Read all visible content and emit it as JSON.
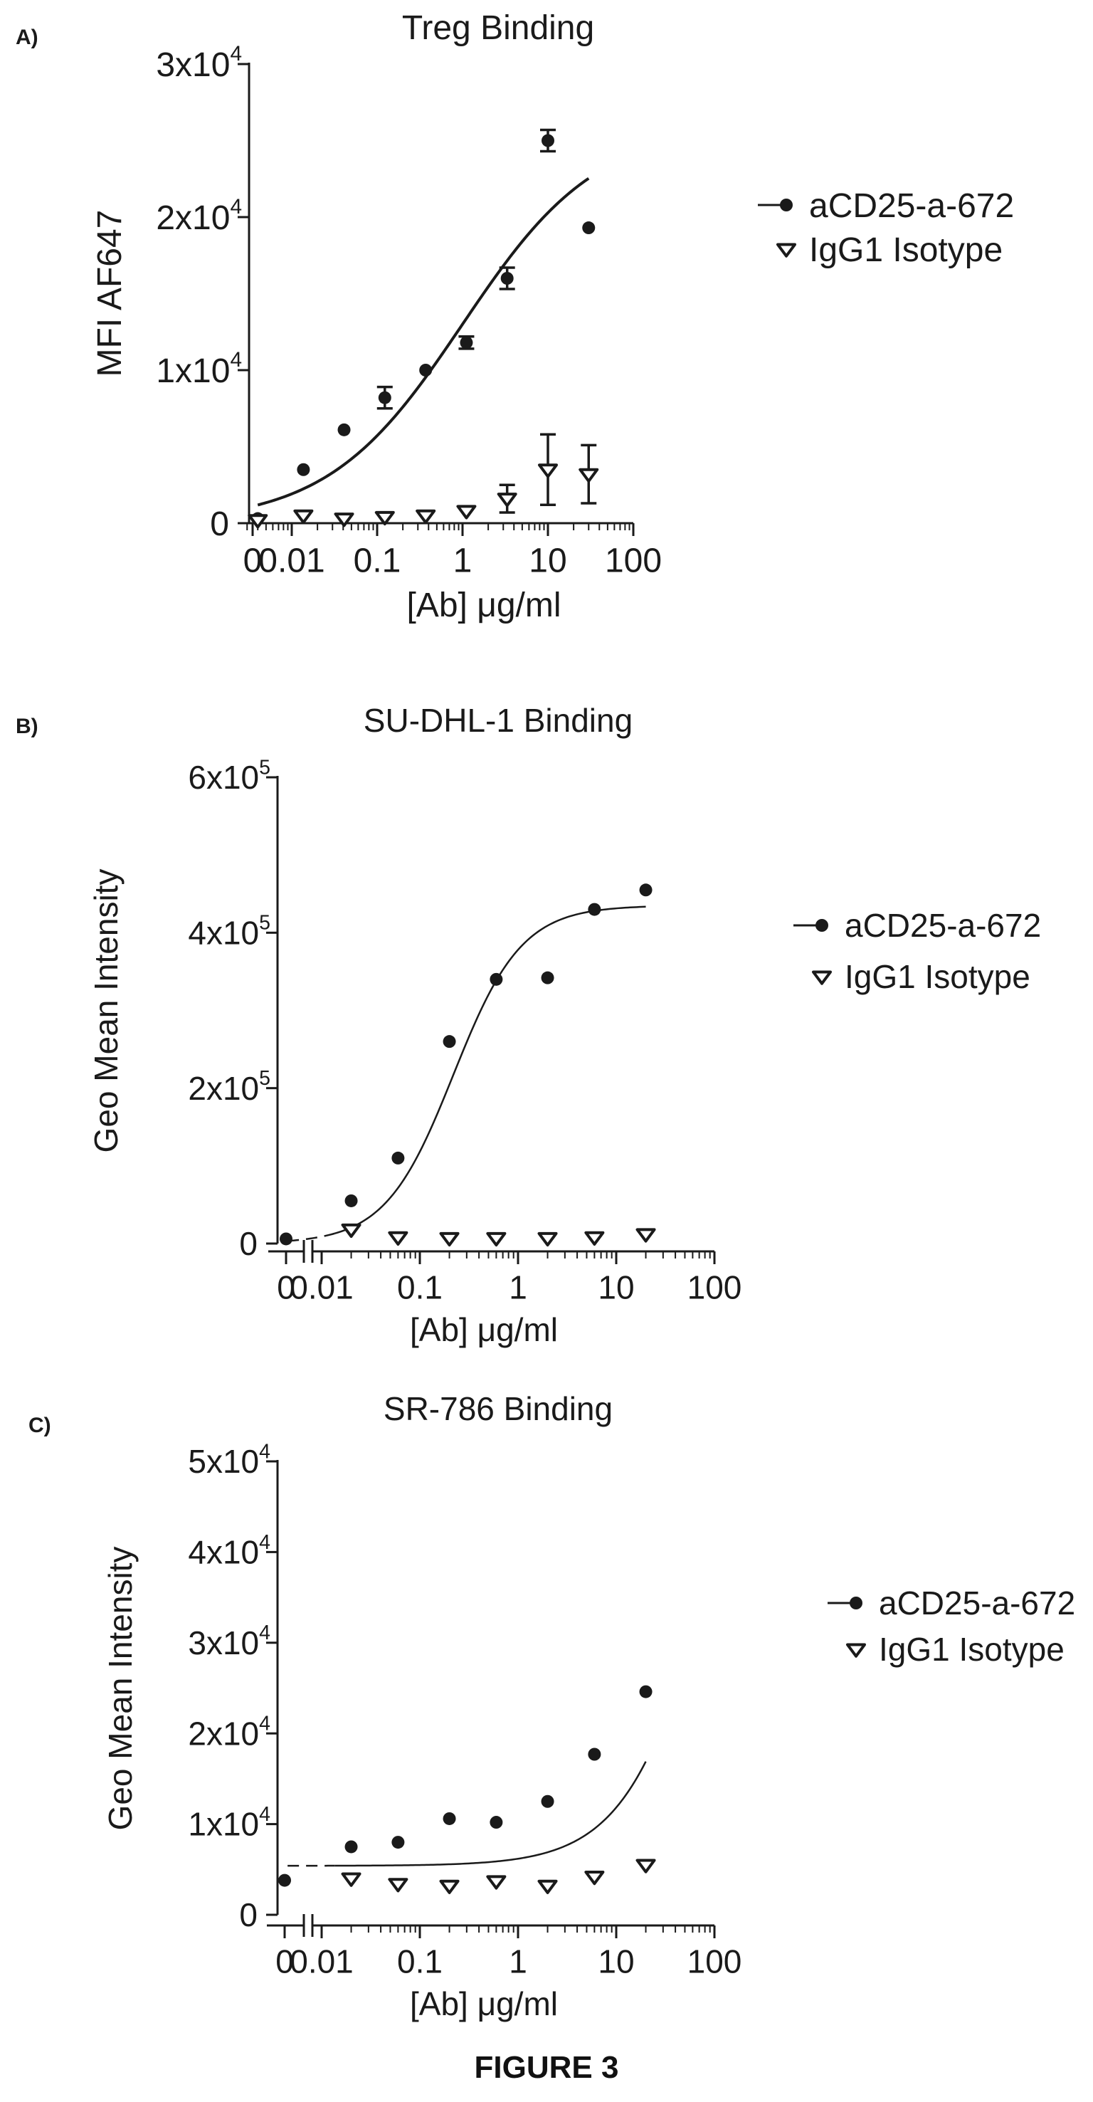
{
  "figure_label": "FIGURE 3",
  "colors": {
    "ink": "#1a1a1a"
  },
  "chart_data": [
    {
      "type": "scatter",
      "panel_label": "A)",
      "title": "Treg Binding",
      "xlabel": "[Ab] μg/ml",
      "ylabel": "MFI AF647",
      "xscale": "log",
      "x_tick_labels": [
        "0",
        "0.01",
        "0.1",
        "1",
        "10",
        "100"
      ],
      "y_ticks": [
        {
          "value": 0,
          "label": "0"
        },
        {
          "value": 10000,
          "label": "1x10",
          "exp": "4"
        },
        {
          "value": 20000,
          "label": "2x10",
          "exp": "4"
        },
        {
          "value": 30000,
          "label": "3x10",
          "exp": "4"
        }
      ],
      "ylim": [
        0,
        30000
      ],
      "xlim": [
        0.003,
        100
      ],
      "axis_break": false,
      "legend_position": "right",
      "series": [
        {
          "name": "aCD25-a-672",
          "marker": "circle",
          "points": [
            {
              "x": 0.004,
              "y": 300,
              "err": 0
            },
            {
              "x": 0.0137,
              "y": 3500,
              "err": 0
            },
            {
              "x": 0.041,
              "y": 6100,
              "err": 0
            },
            {
              "x": 0.123,
              "y": 8200,
              "err": 700
            },
            {
              "x": 0.37,
              "y": 10000,
              "err": 0
            },
            {
              "x": 1.11,
              "y": 11800,
              "err": 400
            },
            {
              "x": 3.33,
              "y": 16000,
              "err": 700
            },
            {
              "x": 10,
              "y": 25000,
              "err": 700
            },
            {
              "x": 30,
              "y": 19300,
              "err": 0
            }
          ],
          "fit": {
            "bottom": 0,
            "top": 26000,
            "ec50": 1.0,
            "hill": 0.55,
            "x_from": 0.004,
            "x_to": 30
          }
        },
        {
          "name": "IgG1 Isotype",
          "marker": "triangle-down",
          "points": [
            {
              "x": 0.004,
              "y": 200,
              "err": 0
            },
            {
              "x": 0.0137,
              "y": 500,
              "err": 0
            },
            {
              "x": 0.041,
              "y": 300,
              "err": 0
            },
            {
              "x": 0.123,
              "y": 400,
              "err": 0
            },
            {
              "x": 0.37,
              "y": 500,
              "err": 0
            },
            {
              "x": 1.11,
              "y": 800,
              "err": 0
            },
            {
              "x": 3.33,
              "y": 1600,
              "err": 900
            },
            {
              "x": 10,
              "y": 3500,
              "err": 2300
            },
            {
              "x": 30,
              "y": 3200,
              "err": 1900
            }
          ]
        }
      ]
    },
    {
      "type": "scatter",
      "panel_label": "B)",
      "title": "SU-DHL-1 Binding",
      "xlabel": "[Ab] μg/ml",
      "ylabel": "Geo Mean Intensity",
      "xscale": "log",
      "x_tick_labels": [
        "0",
        "0.01",
        "0.1",
        "1",
        "10",
        "100"
      ],
      "y_ticks": [
        {
          "value": 0,
          "label": "0"
        },
        {
          "value": 200000,
          "label": "2x10",
          "exp": "5"
        },
        {
          "value": 400000,
          "label": "4x10",
          "exp": "5"
        },
        {
          "value": 600000,
          "label": "6x10",
          "exp": "5"
        }
      ],
      "ylim": [
        0,
        600000
      ],
      "xlim": [
        0.01,
        100
      ],
      "axis_break": true,
      "legend_position": "right",
      "series": [
        {
          "name": "aCD25-a-672",
          "marker": "circle",
          "points": [
            {
              "x": 0,
              "y": 6000
            },
            {
              "x": 0.02,
              "y": 55000
            },
            {
              "x": 0.06,
              "y": 110000
            },
            {
              "x": 0.2,
              "y": 260000
            },
            {
              "x": 0.6,
              "y": 340000
            },
            {
              "x": 2,
              "y": 342000
            },
            {
              "x": 6,
              "y": 430000
            },
            {
              "x": 20,
              "y": 455000
            }
          ],
          "fit": {
            "bottom": 0,
            "top": 435000,
            "ec50": 0.22,
            "hill": 1.25,
            "x_from": 0.0045,
            "x_to": 20,
            "dashed_below": 0.013
          }
        },
        {
          "name": "IgG1 Isotype",
          "marker": "triangle-down",
          "points": [
            {
              "x": 0.02,
              "y": 18000
            },
            {
              "x": 0.06,
              "y": 8000
            },
            {
              "x": 0.2,
              "y": 7000
            },
            {
              "x": 0.6,
              "y": 7000
            },
            {
              "x": 2,
              "y": 7000
            },
            {
              "x": 6,
              "y": 8000
            },
            {
              "x": 20,
              "y": 12000
            }
          ]
        }
      ]
    },
    {
      "type": "scatter",
      "panel_label": "C)",
      "title": "SR-786 Binding",
      "xlabel": "[Ab] μg/ml",
      "ylabel": "Geo Mean Intensity",
      "xscale": "log",
      "x_tick_labels": [
        "0",
        "0.01",
        "0.1",
        "1",
        "10",
        "100"
      ],
      "y_ticks": [
        {
          "value": 0,
          "label": "0"
        },
        {
          "value": 10000,
          "label": "1x10",
          "exp": "4"
        },
        {
          "value": 20000,
          "label": "2x10",
          "exp": "4"
        },
        {
          "value": 30000,
          "label": "3x10",
          "exp": "4"
        },
        {
          "value": 40000,
          "label": "4x10",
          "exp": "4"
        },
        {
          "value": 50000,
          "label": "5x10",
          "exp": "4"
        }
      ],
      "ylim": [
        0,
        50000
      ],
      "xlim": [
        0.01,
        100
      ],
      "axis_break": true,
      "legend_position": "right",
      "series": [
        {
          "name": "aCD25-a-672",
          "marker": "circle",
          "points": [
            {
              "x": 0,
              "y": 3800
            },
            {
              "x": 0.02,
              "y": 7500
            },
            {
              "x": 0.06,
              "y": 8000
            },
            {
              "x": 0.2,
              "y": 10600
            },
            {
              "x": 0.6,
              "y": 10200
            },
            {
              "x": 2,
              "y": 12500
            },
            {
              "x": 6,
              "y": 17700
            },
            {
              "x": 20,
              "y": 24600
            }
          ],
          "fit": {
            "bottom": 5400,
            "top": 80000,
            "ec50": 120,
            "hill": 0.95,
            "x_from": 0.0045,
            "x_to": 20,
            "dashed_below": 0.013
          }
        },
        {
          "name": "IgG1 Isotype",
          "marker": "triangle-down",
          "points": [
            {
              "x": 0.02,
              "y": 4000
            },
            {
              "x": 0.06,
              "y": 3400
            },
            {
              "x": 0.2,
              "y": 3200
            },
            {
              "x": 0.6,
              "y": 3700
            },
            {
              "x": 2,
              "y": 3200
            },
            {
              "x": 6,
              "y": 4200
            },
            {
              "x": 20,
              "y": 5500
            }
          ]
        }
      ]
    }
  ]
}
